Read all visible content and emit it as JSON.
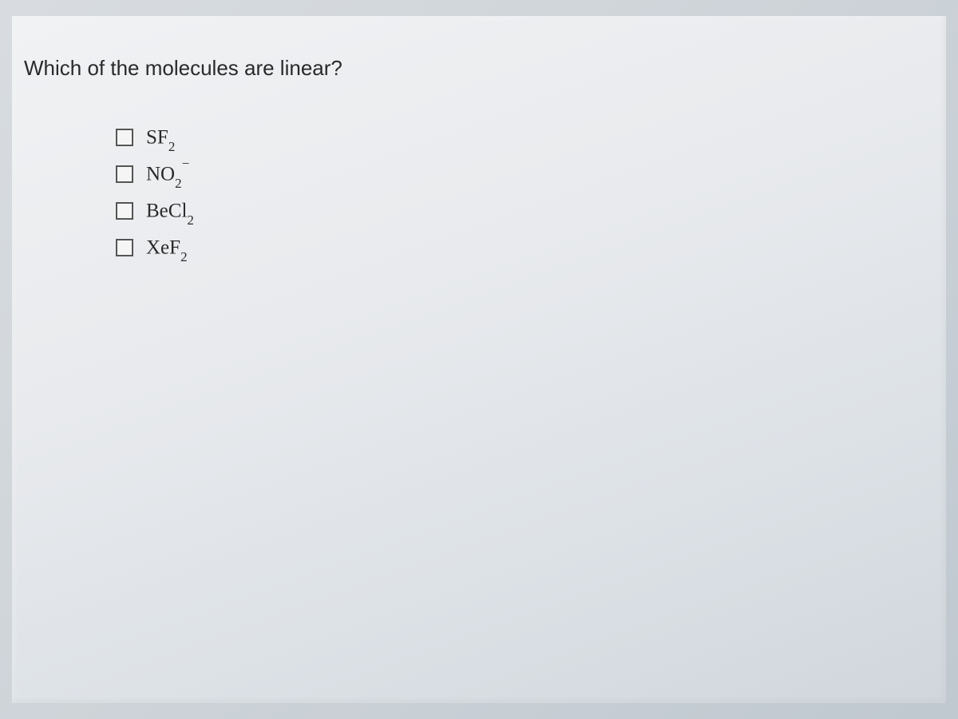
{
  "question": {
    "prompt": "Which of the molecules are linear?",
    "options": [
      {
        "base": "SF",
        "subscript": "2",
        "superscript": "",
        "checked": false
      },
      {
        "base": "NO",
        "subscript": "2",
        "superscript": "−",
        "checked": false
      },
      {
        "base": "BeCl",
        "subscript": "2",
        "superscript": "",
        "checked": false
      },
      {
        "base": "XeF",
        "subscript": "2",
        "superscript": "",
        "checked": false
      }
    ]
  },
  "styling": {
    "background_gradient_start": "#f0f2f4",
    "background_gradient_end": "#d0d6dc",
    "text_color": "#2a2a2a",
    "checkbox_border_color": "#555555",
    "checkbox_bg_color": "#f5f5f5",
    "question_fontsize": 26,
    "option_fontsize": 25,
    "subscript_fontsize": 17
  }
}
